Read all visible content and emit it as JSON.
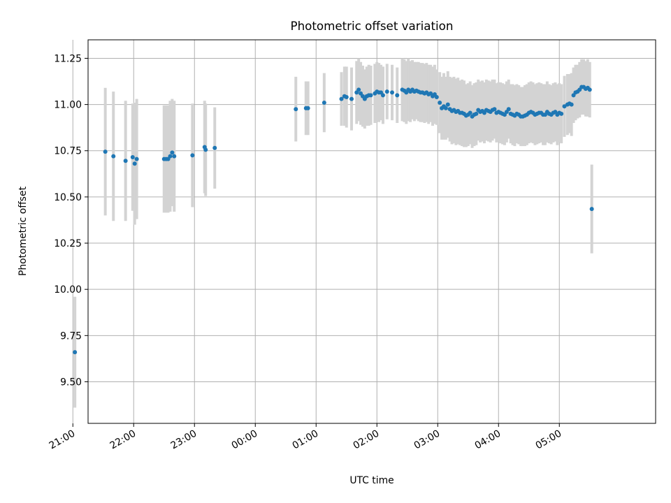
{
  "chart_data": {
    "type": "scatter",
    "title": "Photometric offset variation",
    "xlabel": "UTC time",
    "ylabel": "Photometric offset",
    "grid": true,
    "x_unit": "minutes relative to 00:00 UTC",
    "xlim": [
      -165,
      395
    ],
    "ylim": [
      9.275,
      11.35
    ],
    "x_ticks": [
      -180,
      -120,
      -60,
      0,
      60,
      120,
      180,
      240,
      300
    ],
    "x_tick_labels": [
      "21:00",
      "22:00",
      "23:00",
      "00:00",
      "01:00",
      "02:00",
      "03:00",
      "04:00",
      "05:00"
    ],
    "y_ticks": [
      9.5,
      9.75,
      10.0,
      10.25,
      10.5,
      10.75,
      11.0,
      11.25
    ],
    "y_tick_labels": [
      "9.50",
      "9.75",
      "10.00",
      "10.25",
      "10.50",
      "10.75",
      "11.00",
      "11.25"
    ],
    "colors": {
      "points": "#1f77b4",
      "errorbars": "#d3d3d3",
      "grid": "#b0b0b0",
      "axes": "#000000"
    },
    "series": [
      {
        "x": [
          -178,
          -148,
          -140,
          -128,
          -121,
          -119,
          -117,
          -90,
          -88,
          -86,
          -84,
          -82,
          -80,
          -62,
          -50,
          -49,
          -40,
          40,
          50,
          52,
          68,
          85,
          88,
          90,
          95,
          100,
          102,
          104,
          106,
          108,
          110,
          112,
          114,
          118,
          120,
          122,
          124,
          126,
          130,
          135,
          140,
          145,
          147,
          149,
          151,
          153,
          155,
          157,
          159,
          161,
          163,
          165,
          167,
          169,
          171,
          173,
          175,
          177,
          179,
          182,
          184,
          186,
          188,
          190,
          192,
          194,
          196,
          198,
          200,
          202,
          204,
          206,
          208,
          210,
          212,
          214,
          216,
          218,
          220,
          222,
          224,
          226,
          228,
          230,
          232,
          234,
          236,
          238,
          240,
          242,
          244,
          246,
          248,
          250,
          252,
          254,
          256,
          258,
          260,
          262,
          264,
          266,
          268,
          270,
          272,
          274,
          276,
          278,
          280,
          282,
          284,
          286,
          288,
          290,
          292,
          294,
          296,
          298,
          300,
          302,
          305,
          308,
          310,
          312,
          314,
          316,
          318,
          320,
          322,
          324,
          326,
          328,
          330,
          332
        ],
        "y": [
          9.66,
          10.745,
          10.72,
          10.695,
          10.715,
          10.68,
          10.705,
          10.705,
          10.705,
          10.705,
          10.72,
          10.74,
          10.72,
          10.725,
          10.77,
          10.755,
          10.765,
          10.975,
          10.98,
          10.98,
          11.01,
          11.03,
          11.045,
          11.04,
          11.03,
          11.065,
          11.08,
          11.06,
          11.045,
          11.03,
          11.045,
          11.05,
          11.05,
          11.06,
          11.07,
          11.065,
          11.065,
          11.05,
          11.07,
          11.065,
          11.05,
          11.08,
          11.075,
          11.065,
          11.08,
          11.07,
          11.08,
          11.07,
          11.075,
          11.07,
          11.065,
          11.065,
          11.06,
          11.065,
          11.055,
          11.06,
          11.045,
          11.055,
          11.04,
          11.01,
          10.98,
          10.99,
          10.98,
          11.0,
          10.975,
          10.965,
          10.97,
          10.96,
          10.965,
          10.955,
          10.955,
          10.95,
          10.94,
          10.945,
          10.955,
          10.935,
          10.945,
          10.95,
          10.97,
          10.96,
          10.965,
          10.955,
          10.97,
          10.965,
          10.96,
          10.97,
          10.975,
          10.955,
          10.96,
          10.955,
          10.95,
          10.945,
          10.96,
          10.975,
          10.95,
          10.945,
          10.94,
          10.95,
          10.945,
          10.935,
          10.935,
          10.94,
          10.945,
          10.955,
          10.96,
          10.955,
          10.945,
          10.95,
          10.955,
          10.955,
          10.945,
          10.945,
          10.96,
          10.95,
          10.945,
          10.955,
          10.96,
          10.945,
          10.955,
          10.95,
          10.99,
          11.0,
          11.005,
          11.0,
          11.05,
          11.065,
          11.07,
          11.08,
          11.095,
          11.095,
          11.085,
          11.09,
          11.08,
          10.435
        ],
        "err": [
          0.3,
          0.345,
          0.35,
          0.325,
          0.29,
          0.33,
          0.325,
          0.29,
          0.29,
          0.29,
          0.3,
          0.29,
          0.3,
          0.28,
          0.25,
          0.25,
          0.22,
          0.175,
          0.145,
          0.145,
          0.16,
          0.145,
          0.16,
          0.165,
          0.17,
          0.17,
          0.17,
          0.17,
          0.165,
          0.16,
          0.16,
          0.165,
          0.16,
          0.16,
          0.16,
          0.16,
          0.15,
          0.155,
          0.15,
          0.15,
          0.15,
          0.17,
          0.17,
          0.17,
          0.17,
          0.165,
          0.16,
          0.16,
          0.155,
          0.16,
          0.16,
          0.16,
          0.16,
          0.16,
          0.16,
          0.155,
          0.16,
          0.16,
          0.15,
          0.165,
          0.17,
          0.18,
          0.17,
          0.18,
          0.175,
          0.18,
          0.18,
          0.18,
          0.18,
          0.175,
          0.18,
          0.18,
          0.17,
          0.17,
          0.17,
          0.17,
          0.17,
          0.17,
          0.165,
          0.165,
          0.165,
          0.165,
          0.165,
          0.165,
          0.165,
          0.165,
          0.16,
          0.16,
          0.16,
          0.165,
          0.165,
          0.165,
          0.165,
          0.16,
          0.16,
          0.165,
          0.165,
          0.16,
          0.16,
          0.16,
          0.16,
          0.165,
          0.165,
          0.165,
          0.165,
          0.165,
          0.165,
          0.165,
          0.165,
          0.16,
          0.165,
          0.165,
          0.165,
          0.16,
          0.16,
          0.16,
          0.16,
          0.165,
          0.16,
          0.16,
          0.165,
          0.165,
          0.16,
          0.17,
          0.15,
          0.15,
          0.145,
          0.15,
          0.15,
          0.15,
          0.15,
          0.155,
          0.15,
          0.24
        ]
      }
    ]
  }
}
